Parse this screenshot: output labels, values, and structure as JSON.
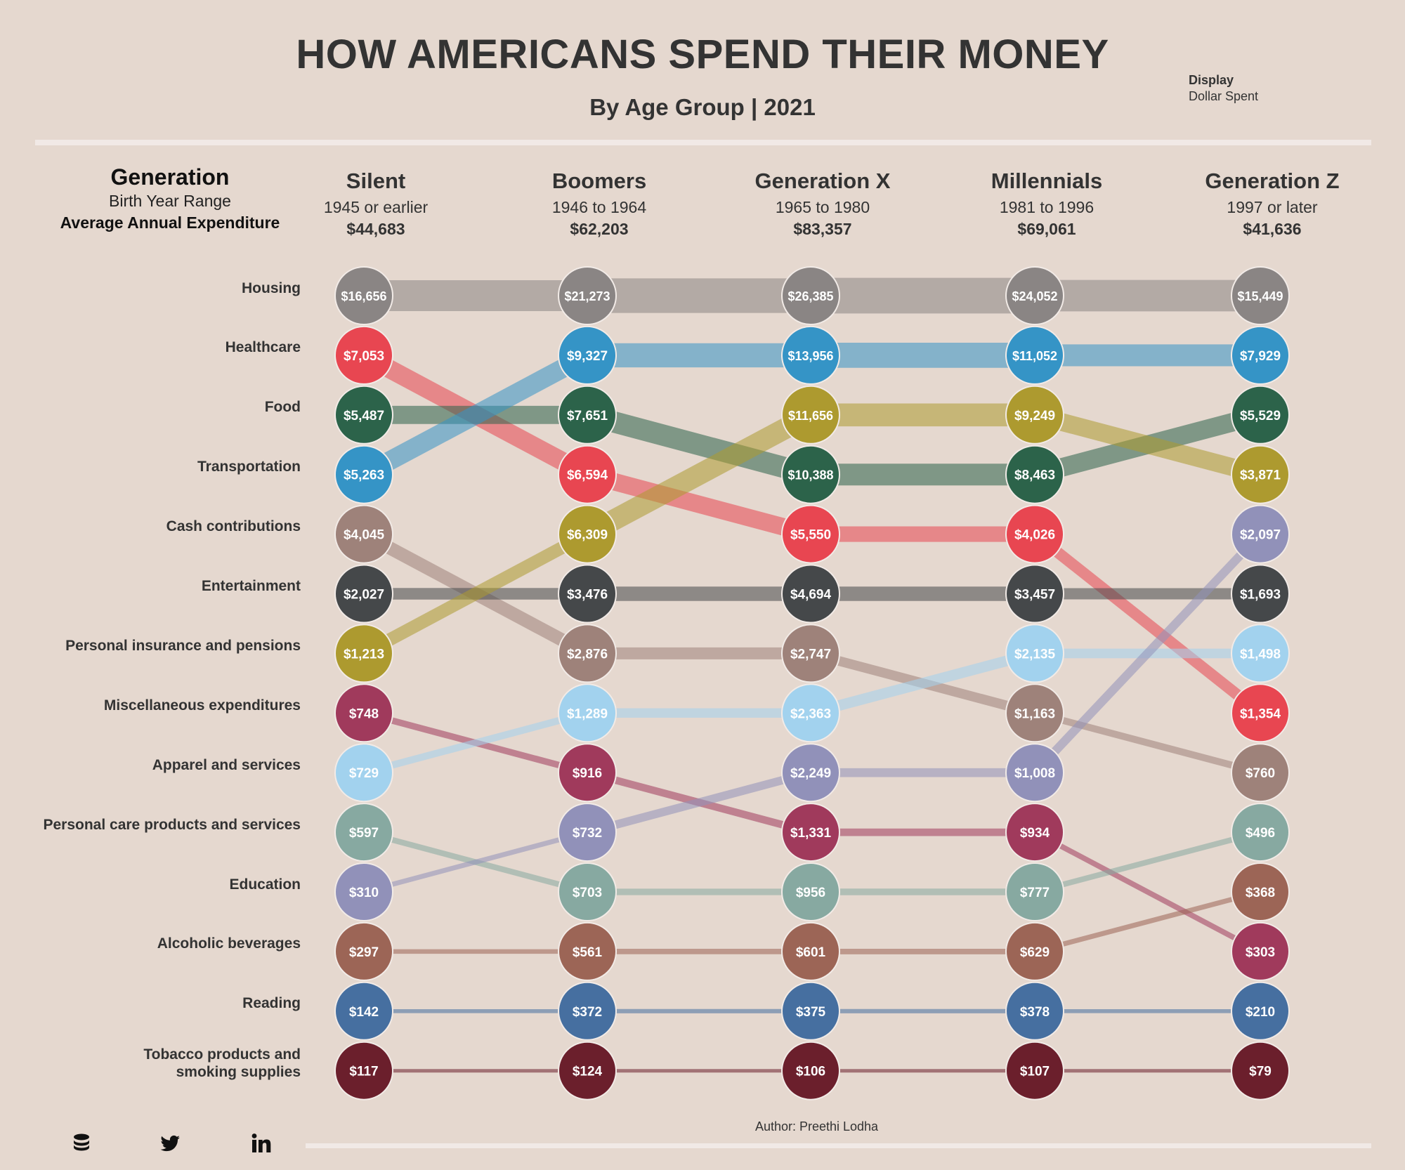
{
  "header": {
    "title": "HOW AMERICANS SPEND THEIR MONEY",
    "subtitle": "By Age Group | 2021"
  },
  "display_control": {
    "label": "Display",
    "value": "Dollar Spent"
  },
  "row_header": {
    "title": "Generation",
    "range_label": "Birth Year Range",
    "spend_label": "Average Annual Expenditure"
  },
  "footer": {
    "author": "Author: Preethi Lodha"
  },
  "icons": [
    "database-icon",
    "twitter-icon",
    "linkedin-icon"
  ],
  "chart_data": {
    "type": "bump",
    "generations": [
      {
        "name": "Silent",
        "range": "1945 or earlier",
        "avg_spend": "$44,683"
      },
      {
        "name": "Boomers",
        "range": "1946 to 1964",
        "avg_spend": "$62,203"
      },
      {
        "name": "Generation X",
        "range": "1965 to 1980",
        "avg_spend": "$83,357"
      },
      {
        "name": "Millennials",
        "range": "1981 to 1996",
        "avg_spend": "$69,061"
      },
      {
        "name": "Generation Z",
        "range": "1997 or later",
        "avg_spend": "$41,636"
      }
    ],
    "categories": [
      {
        "name": "Housing",
        "color": "#8a8584",
        "values": [
          16656,
          21273,
          26385,
          24052,
          15449
        ],
        "ranks": [
          1,
          1,
          1,
          1,
          1
        ]
      },
      {
        "name": "Healthcare",
        "color": "#e84651",
        "values": [
          7053,
          6594,
          5550,
          4026,
          1354
        ],
        "ranks": [
          2,
          4,
          5,
          5,
          8
        ]
      },
      {
        "name": "Food",
        "color": "#2c634a",
        "values": [
          5487,
          7651,
          10388,
          8463,
          5529
        ],
        "ranks": [
          3,
          3,
          4,
          4,
          3
        ]
      },
      {
        "name": "Transportation",
        "color": "#3594c6",
        "values": [
          5263,
          9327,
          13956,
          11052,
          7929
        ],
        "ranks": [
          4,
          2,
          2,
          2,
          2
        ]
      },
      {
        "name": "Cash contributions",
        "color": "#9e827a",
        "values": [
          4045,
          2876,
          2747,
          1163,
          760
        ],
        "ranks": [
          5,
          7,
          7,
          8,
          9
        ]
      },
      {
        "name": "Entertainment",
        "color": "#45484a",
        "values": [
          2027,
          3476,
          4694,
          3457,
          1693
        ],
        "ranks": [
          6,
          6,
          6,
          6,
          6
        ]
      },
      {
        "name": "Personal insurance and pensions",
        "color": "#ad9a2f",
        "values": [
          1213,
          6309,
          11656,
          9249,
          3871
        ],
        "ranks": [
          7,
          5,
          3,
          3,
          4
        ]
      },
      {
        "name": "Miscellaneous expenditures",
        "color": "#a03a5c",
        "values": [
          748,
          916,
          1331,
          934,
          303
        ],
        "ranks": [
          8,
          9,
          10,
          10,
          12
        ]
      },
      {
        "name": "Apparel and services",
        "color": "#a2d2ee",
        "values": [
          729,
          1289,
          2363,
          2135,
          1498
        ],
        "ranks": [
          9,
          8,
          8,
          7,
          7
        ]
      },
      {
        "name": "Personal care products and services",
        "color": "#87a9a1",
        "values": [
          597,
          703,
          956,
          777,
          496
        ],
        "ranks": [
          10,
          11,
          11,
          11,
          10
        ]
      },
      {
        "name": "Education",
        "color": "#9191b9",
        "values": [
          310,
          732,
          2249,
          1008,
          2097
        ],
        "ranks": [
          11,
          10,
          9,
          9,
          5
        ]
      },
      {
        "name": "Alcoholic beverages",
        "color": "#9c6556",
        "values": [
          297,
          561,
          601,
          629,
          368
        ],
        "ranks": [
          12,
          12,
          12,
          12,
          11
        ]
      },
      {
        "name": "Reading",
        "color": "#466fa0",
        "values": [
          142,
          372,
          375,
          378,
          210
        ],
        "ranks": [
          13,
          13,
          13,
          13,
          13
        ]
      },
      {
        "name": "Tobacco products and smoking supplies",
        "color": "#6b1f2c",
        "values": [
          117,
          124,
          106,
          107,
          79
        ],
        "ranks": [
          14,
          14,
          14,
          14,
          14
        ]
      }
    ]
  }
}
